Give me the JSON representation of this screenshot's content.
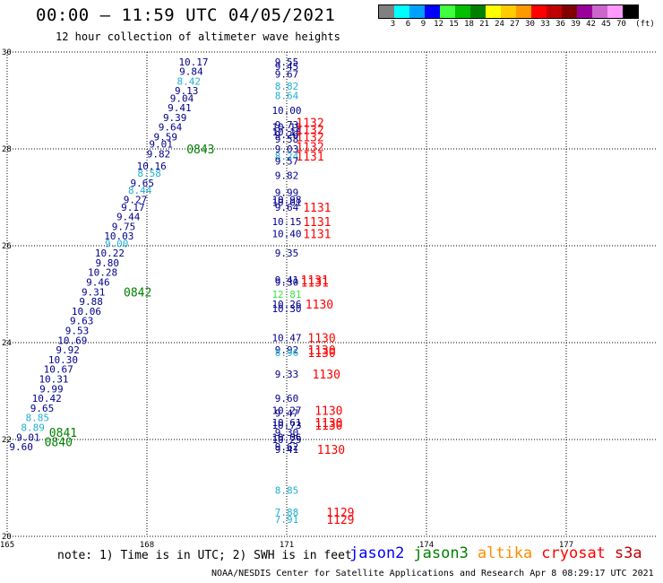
{
  "header": {
    "title": "00:00 – 11:59 UTC 04/05/2021",
    "subtitle": "12 hour collection of altimeter wave heights"
  },
  "scale": {
    "unit": "(ft)",
    "swatches": [
      {
        "color": "#808080",
        "label": "3"
      },
      {
        "color": "#00ffff",
        "label": "6"
      },
      {
        "color": "#00a0ff",
        "label": "9"
      },
      {
        "color": "#0000ff",
        "label": "12"
      },
      {
        "color": "#40ff40",
        "label": "15"
      },
      {
        "color": "#00c000",
        "label": "18"
      },
      {
        "color": "#008000",
        "label": "21"
      },
      {
        "color": "#ffff00",
        "label": "24"
      },
      {
        "color": "#ffcc00",
        "label": "27"
      },
      {
        "color": "#ff9900",
        "label": "30"
      },
      {
        "color": "#ff0000",
        "label": "33"
      },
      {
        "color": "#c00000",
        "label": "36"
      },
      {
        "color": "#800000",
        "label": "39"
      },
      {
        "color": "#990099",
        "label": "42"
      },
      {
        "color": "#cc66cc",
        "label": "45"
      },
      {
        "color": "#ff99ff",
        "label": "70"
      },
      {
        "color": "#000000",
        "label": ""
      }
    ]
  },
  "footer": {
    "note": "note: 1) Time is in UTC; 2) SWH is in feet",
    "legend": [
      {
        "name": "jason2",
        "color": "#0000ff"
      },
      {
        "name": "jason3",
        "color": "#008000"
      },
      {
        "name": "altika",
        "color": "#ff8c00"
      },
      {
        "name": "cryosat",
        "color": "#ff0000"
      },
      {
        "name": "s3a",
        "color": "#c00000"
      }
    ],
    "credit": "NOAA/NESDIS Center for Satellite Applications and Research   Apr  8 08:29:17 UTC 2021"
  },
  "chart_data": {
    "type": "scatter",
    "xlim": [
      165,
      177
    ],
    "ylim": [
      20,
      30
    ],
    "xticks": [
      "165",
      "168",
      "171",
      "174",
      "177"
    ],
    "yticks": [
      "20",
      "22",
      "24",
      "26",
      "28",
      "30"
    ],
    "grid": true,
    "colors": {
      "dark": "#00008b",
      "light": "#20b0d0",
      "green": "#008000",
      "lime": "#40e040",
      "red": "#ff0000"
    },
    "points": [
      {
        "x": 169.0,
        "y": 29.8,
        "label": "10.17",
        "c": "dark"
      },
      {
        "x": 168.95,
        "y": 29.6,
        "label": "9.84",
        "c": "dark"
      },
      {
        "x": 168.9,
        "y": 29.4,
        "label": "8.42",
        "c": "light"
      },
      {
        "x": 168.85,
        "y": 29.2,
        "label": "9.13",
        "c": "dark"
      },
      {
        "x": 168.75,
        "y": 29.05,
        "label": "9.04",
        "c": "dark"
      },
      {
        "x": 168.7,
        "y": 28.85,
        "label": "9.41",
        "c": "dark"
      },
      {
        "x": 168.6,
        "y": 28.65,
        "label": "9.39",
        "c": "dark"
      },
      {
        "x": 168.5,
        "y": 28.45,
        "label": "9.64",
        "c": "dark"
      },
      {
        "x": 168.4,
        "y": 28.25,
        "label": "9.59",
        "c": "dark"
      },
      {
        "x": 168.3,
        "y": 28.1,
        "label": "9.01",
        "c": "dark"
      },
      {
        "x": 168.25,
        "y": 27.9,
        "label": "9.82",
        "c": "dark"
      },
      {
        "x": 168.1,
        "y": 27.65,
        "label": "10.16",
        "c": "dark"
      },
      {
        "x": 168.05,
        "y": 27.5,
        "label": "8.58",
        "c": "light"
      },
      {
        "x": 167.9,
        "y": 27.3,
        "label": "9.65",
        "c": "dark"
      },
      {
        "x": 167.85,
        "y": 27.15,
        "label": "8.44",
        "c": "light"
      },
      {
        "x": 167.75,
        "y": 26.95,
        "label": "9.27",
        "c": "dark"
      },
      {
        "x": 167.7,
        "y": 26.8,
        "label": "9.17",
        "c": "dark"
      },
      {
        "x": 167.6,
        "y": 26.6,
        "label": "9.44",
        "c": "dark"
      },
      {
        "x": 167.5,
        "y": 26.4,
        "label": "9.75",
        "c": "dark"
      },
      {
        "x": 167.4,
        "y": 26.2,
        "label": "10.03",
        "c": "dark"
      },
      {
        "x": 167.35,
        "y": 26.05,
        "label": "9.00",
        "c": "light"
      },
      {
        "x": 167.2,
        "y": 25.85,
        "label": "10.22",
        "c": "dark"
      },
      {
        "x": 167.15,
        "y": 25.65,
        "label": "9.80",
        "c": "dark"
      },
      {
        "x": 167.05,
        "y": 25.45,
        "label": "10.28",
        "c": "dark"
      },
      {
        "x": 166.95,
        "y": 25.25,
        "label": "9.46",
        "c": "dark"
      },
      {
        "x": 166.85,
        "y": 25.05,
        "label": "9.31",
        "c": "dark"
      },
      {
        "x": 166.8,
        "y": 24.85,
        "label": "9.88",
        "c": "dark"
      },
      {
        "x": 166.7,
        "y": 24.65,
        "label": "10.06",
        "c": "dark"
      },
      {
        "x": 166.6,
        "y": 24.45,
        "label": "9.63",
        "c": "dark"
      },
      {
        "x": 166.5,
        "y": 24.25,
        "label": "9.53",
        "c": "dark"
      },
      {
        "x": 166.4,
        "y": 24.05,
        "label": "10.69",
        "c": "dark"
      },
      {
        "x": 166.3,
        "y": 23.85,
        "label": "9.92",
        "c": "dark"
      },
      {
        "x": 166.2,
        "y": 23.65,
        "label": "10.30",
        "c": "dark"
      },
      {
        "x": 166.1,
        "y": 23.45,
        "label": "10.67",
        "c": "dark"
      },
      {
        "x": 166.0,
        "y": 23.25,
        "label": "10.31",
        "c": "dark"
      },
      {
        "x": 165.95,
        "y": 23.05,
        "label": "9.99",
        "c": "dark"
      },
      {
        "x": 165.85,
        "y": 22.85,
        "label": "10.42",
        "c": "dark"
      },
      {
        "x": 165.75,
        "y": 22.65,
        "label": "9.65",
        "c": "dark"
      },
      {
        "x": 165.65,
        "y": 22.45,
        "label": "8.85",
        "c": "light"
      },
      {
        "x": 165.55,
        "y": 22.25,
        "label": "8.89",
        "c": "light"
      },
      {
        "x": 165.45,
        "y": 22.05,
        "label": "9.01",
        "c": "dark"
      },
      {
        "x": 165.3,
        "y": 21.85,
        "label": "9.60",
        "c": "dark"
      },
      {
        "x": 171.0,
        "y": 29.8,
        "label": "9.55",
        "c": "dark"
      },
      {
        "x": 171.0,
        "y": 29.7,
        "label": "9.45",
        "c": "dark"
      },
      {
        "x": 171.0,
        "y": 29.55,
        "label": "9.67",
        "c": "dark"
      },
      {
        "x": 171.0,
        "y": 29.3,
        "label": "8.82",
        "c": "light"
      },
      {
        "x": 171.0,
        "y": 29.1,
        "label": "8.64",
        "c": "light"
      },
      {
        "x": 171.0,
        "y": 28.8,
        "label": "10.00",
        "c": "dark"
      },
      {
        "x": 171.0,
        "y": 28.5,
        "label": "9.73",
        "c": "dark"
      },
      {
        "x": 171.0,
        "y": 28.45,
        "label": "10.19",
        "c": "dark"
      },
      {
        "x": 171.0,
        "y": 28.35,
        "label": "10.18",
        "c": "dark"
      },
      {
        "x": 171.0,
        "y": 28.3,
        "label": "9.26",
        "c": "dark"
      },
      {
        "x": 171.0,
        "y": 28.2,
        "label": "9.58",
        "c": "dark"
      },
      {
        "x": 171.0,
        "y": 28.0,
        "label": "9.03",
        "c": "dark"
      },
      {
        "x": 171.0,
        "y": 27.85,
        "label": "8.24",
        "c": "light"
      },
      {
        "x": 171.0,
        "y": 27.75,
        "label": "9.57",
        "c": "dark"
      },
      {
        "x": 171.0,
        "y": 27.45,
        "label": "9.82",
        "c": "dark"
      },
      {
        "x": 171.0,
        "y": 27.1,
        "label": "9.99",
        "c": "dark"
      },
      {
        "x": 171.0,
        "y": 26.95,
        "label": "10.98",
        "c": "dark"
      },
      {
        "x": 171.0,
        "y": 26.9,
        "label": "10.01",
        "c": "dark"
      },
      {
        "x": 171.0,
        "y": 26.8,
        "label": "9.64",
        "c": "dark"
      },
      {
        "x": 171.0,
        "y": 26.5,
        "label": "10.15",
        "c": "dark"
      },
      {
        "x": 171.0,
        "y": 26.25,
        "label": "10.40",
        "c": "dark"
      },
      {
        "x": 171.0,
        "y": 25.85,
        "label": "9.35",
        "c": "dark"
      },
      {
        "x": 171.0,
        "y": 25.3,
        "label": "9.41",
        "c": "dark"
      },
      {
        "x": 171.0,
        "y": 25.25,
        "label": "9.30",
        "c": "dark"
      },
      {
        "x": 171.0,
        "y": 25.0,
        "label": "12.81",
        "c": "lime"
      },
      {
        "x": 171.0,
        "y": 24.8,
        "label": "10.26",
        "c": "dark"
      },
      {
        "x": 171.0,
        "y": 24.7,
        "label": "10.30",
        "c": "dark"
      },
      {
        "x": 171.0,
        "y": 24.1,
        "label": "10.47",
        "c": "dark"
      },
      {
        "x": 171.0,
        "y": 23.85,
        "label": "9.92",
        "c": "dark"
      },
      {
        "x": 171.0,
        "y": 23.8,
        "label": "8.96",
        "c": "light"
      },
      {
        "x": 171.0,
        "y": 23.35,
        "label": "9.33",
        "c": "dark"
      },
      {
        "x": 171.0,
        "y": 22.85,
        "label": "9.60",
        "c": "dark"
      },
      {
        "x": 171.0,
        "y": 22.6,
        "label": "10.27",
        "c": "dark"
      },
      {
        "x": 171.0,
        "y": 22.55,
        "label": "9.47",
        "c": "dark"
      },
      {
        "x": 171.0,
        "y": 22.35,
        "label": "10.61",
        "c": "dark"
      },
      {
        "x": 171.0,
        "y": 22.3,
        "label": "10.73",
        "c": "dark"
      },
      {
        "x": 171.0,
        "y": 22.15,
        "label": "9.30",
        "c": "dark"
      },
      {
        "x": 171.0,
        "y": 22.05,
        "label": "10.06",
        "c": "dark"
      },
      {
        "x": 171.0,
        "y": 22.0,
        "label": "10.25",
        "c": "dark"
      },
      {
        "x": 171.0,
        "y": 21.85,
        "label": "9.62",
        "c": "dark"
      },
      {
        "x": 171.0,
        "y": 21.8,
        "label": "9.41",
        "c": "dark"
      },
      {
        "x": 171.0,
        "y": 20.95,
        "label": "8.85",
        "c": "light"
      },
      {
        "x": 171.0,
        "y": 20.5,
        "label": "7.88",
        "c": "light"
      },
      {
        "x": 171.0,
        "y": 20.35,
        "label": "7.91",
        "c": "light"
      }
    ],
    "times": [
      {
        "x": 168.85,
        "y": 28.0,
        "label": "0843",
        "c": "green"
      },
      {
        "x": 167.5,
        "y": 25.05,
        "label": "0842",
        "c": "green"
      },
      {
        "x": 165.9,
        "y": 22.15,
        "label": "0841",
        "c": "green"
      },
      {
        "x": 165.8,
        "y": 21.95,
        "label": "0840",
        "c": "green"
      },
      {
        "x": 171.2,
        "y": 28.55,
        "label": "1132",
        "c": "red"
      },
      {
        "x": 171.2,
        "y": 28.4,
        "label": "1132",
        "c": "red"
      },
      {
        "x": 171.2,
        "y": 28.25,
        "label": "1132",
        "c": "red"
      },
      {
        "x": 171.2,
        "y": 28.05,
        "label": "1132",
        "c": "red"
      },
      {
        "x": 171.2,
        "y": 27.85,
        "label": "1131",
        "c": "red"
      },
      {
        "x": 171.35,
        "y": 26.8,
        "label": "1131",
        "c": "red"
      },
      {
        "x": 171.35,
        "y": 26.5,
        "label": "1131",
        "c": "red"
      },
      {
        "x": 171.35,
        "y": 26.25,
        "label": "1131",
        "c": "red"
      },
      {
        "x": 171.3,
        "y": 25.3,
        "label": "1131",
        "c": "red"
      },
      {
        "x": 171.3,
        "y": 25.25,
        "label": "1131",
        "c": "red"
      },
      {
        "x": 171.4,
        "y": 24.8,
        "label": "1130",
        "c": "red"
      },
      {
        "x": 171.45,
        "y": 24.1,
        "label": "1130",
        "c": "red"
      },
      {
        "x": 171.45,
        "y": 23.85,
        "label": "1130",
        "c": "red"
      },
      {
        "x": 171.45,
        "y": 23.8,
        "label": "1130",
        "c": "red"
      },
      {
        "x": 171.55,
        "y": 23.35,
        "label": "1130",
        "c": "red"
      },
      {
        "x": 171.6,
        "y": 22.6,
        "label": "1130",
        "c": "red"
      },
      {
        "x": 171.6,
        "y": 22.35,
        "label": "1130",
        "c": "red"
      },
      {
        "x": 171.6,
        "y": 22.3,
        "label": "1130",
        "c": "red"
      },
      {
        "x": 171.65,
        "y": 21.8,
        "label": "1130",
        "c": "red"
      },
      {
        "x": 171.85,
        "y": 20.5,
        "label": "1129",
        "c": "red"
      },
      {
        "x": 171.85,
        "y": 20.35,
        "label": "1129",
        "c": "red"
      }
    ]
  }
}
